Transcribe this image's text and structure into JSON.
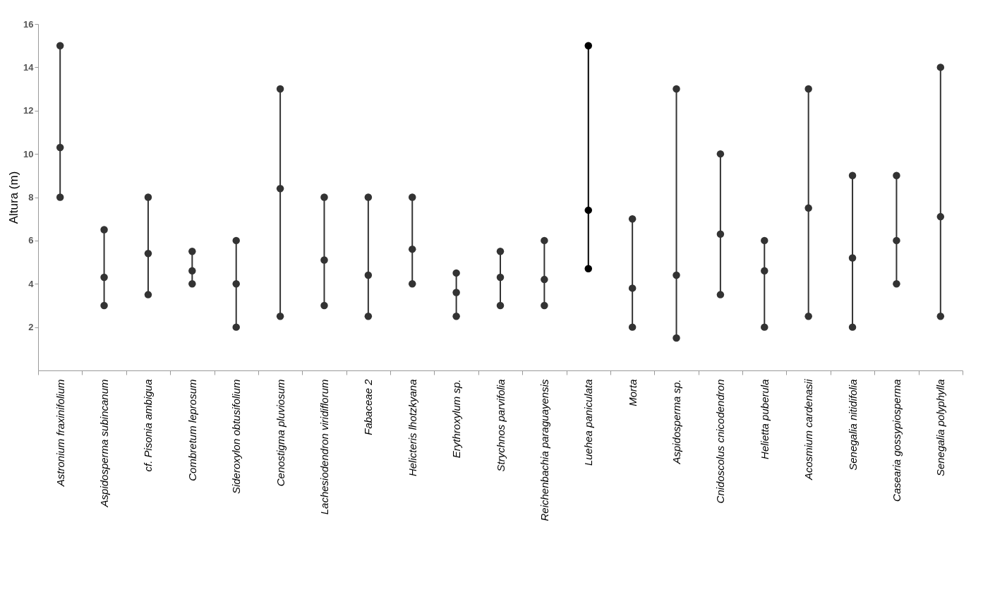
{
  "chart_data": {
    "type": "line",
    "ylabel": "Altura (m)",
    "categories": [
      "Astronium fraxinifolium",
      "Aspidosperma subincanum",
      "cf. Pisonia ambigua",
      "Combretum leprosum",
      "Sideroxylon obtusifolium",
      "Cenostigma pluviosum",
      "Lachesiodendron viridiflorum",
      "Fabaceae 2",
      "Helicteris lhotzkyana",
      "Erythroxylum sp.",
      "Strychnos parvifolia",
      "Reichenbachia paraguayensis",
      "Luehea paniculata",
      "Morta",
      "Aspidosperma sp.",
      "Cnidoscolus cnicodendron",
      "Helietta puberula",
      "Acosmium cardenasii",
      "Senegalia nitidifolia",
      "Casearia gossypiosperma",
      "Senegalia polyphylla"
    ],
    "series": [
      {
        "color": "#333333",
        "x": [
          "Astronium fraxinifolium",
          "Astronium fraxinifolium",
          "Astronium fraxinifolium"
        ],
        "values": [
          8,
          10.3,
          15
        ]
      },
      {
        "color": "#333333",
        "x": [
          "Aspidosperma subincanum",
          "Aspidosperma subincanum",
          "Aspidosperma subincanum"
        ],
        "values": [
          3,
          4.3,
          6.5
        ]
      },
      {
        "color": "#333333",
        "x": [
          "cf. Pisonia ambigua",
          "cf. Pisonia ambigua",
          "cf. Pisonia ambigua"
        ],
        "values": [
          3.5,
          5.4,
          8
        ]
      },
      {
        "color": "#333333",
        "x": [
          "Combretum leprosum",
          "Combretum leprosum",
          "Combretum leprosum"
        ],
        "values": [
          4,
          4.6,
          5.5
        ]
      },
      {
        "color": "#333333",
        "x": [
          "Sideroxylon obtusifolium",
          "Sideroxylon obtusifolium",
          "Sideroxylon obtusifolium"
        ],
        "values": [
          2,
          4,
          6
        ]
      },
      {
        "color": "#333333",
        "x": [
          "Cenostigma pluviosum",
          "Cenostigma pluviosum",
          "Cenostigma pluviosum"
        ],
        "values": [
          2.5,
          8.4,
          13
        ]
      },
      {
        "color": "#333333",
        "x": [
          "Lachesiodendron viridiflorum",
          "Lachesiodendron viridiflorum",
          "Lachesiodendron viridiflorum"
        ],
        "values": [
          3,
          5.1,
          8
        ]
      },
      {
        "color": "#333333",
        "x": [
          "Fabaceae 2",
          "Fabaceae 2",
          "Fabaceae 2"
        ],
        "values": [
          2.5,
          4.4,
          8
        ]
      },
      {
        "color": "#333333",
        "x": [
          "Helicteris lhotzkyana",
          "Helicteris lhotzkyana",
          "Helicteris lhotzkyana"
        ],
        "values": [
          4,
          5.6,
          8
        ]
      },
      {
        "color": "#333333",
        "x": [
          "Erythroxylum sp.",
          "Erythroxylum sp.",
          "Erythroxylum sp."
        ],
        "values": [
          2.5,
          3.6,
          4.5
        ]
      },
      {
        "color": "#333333",
        "x": [
          "Strychnos parvifolia",
          "Strychnos parvifolia",
          "Strychnos parvifolia"
        ],
        "values": [
          3,
          4.3,
          5.5
        ]
      },
      {
        "color": "#333333",
        "x": [
          "Reichenbachia paraguayensis",
          "Reichenbachia paraguayensis",
          "Reichenbachia paraguayensis"
        ],
        "values": [
          3,
          4.2,
          6
        ]
      },
      {
        "color": "#000000",
        "x": [
          "Luehea paniculata",
          "Luehea paniculata",
          "Luehea paniculata"
        ],
        "values": [
          4.7,
          7.4,
          15
        ]
      },
      {
        "color": "#333333",
        "x": [
          "Morta",
          "Morta",
          "Morta"
        ],
        "values": [
          2,
          3.8,
          7
        ]
      },
      {
        "color": "#333333",
        "x": [
          "Aspidosperma sp.",
          "Aspidosperma sp.",
          "Aspidosperma sp."
        ],
        "values": [
          1.5,
          4.4,
          13
        ]
      },
      {
        "color": "#333333",
        "x": [
          "Cnidoscolus cnicodendron",
          "Cnidoscolus cnicodendron",
          "Cnidoscolus cnicodendron"
        ],
        "values": [
          3.5,
          6.3,
          10
        ]
      },
      {
        "color": "#333333",
        "x": [
          "Helietta puberula",
          "Helietta puberula",
          "Helietta puberula"
        ],
        "values": [
          2,
          4.6,
          6
        ]
      },
      {
        "color": "#333333",
        "x": [
          "Acosmium cardenasii",
          "Acosmium cardenasii",
          "Acosmium cardenasii"
        ],
        "values": [
          2.5,
          7.5,
          13
        ]
      },
      {
        "color": "#333333",
        "x": [
          "Senegalia nitidifolia",
          "Senegalia nitidifolia",
          "Senegalia nitidifolia"
        ],
        "values": [
          2,
          5.2,
          9
        ]
      },
      {
        "color": "#333333",
        "x": [
          "Casearia gossypiosperma",
          "Casearia gossypiosperma",
          "Casearia gossypiosperma"
        ],
        "values": [
          4,
          6,
          9
        ]
      },
      {
        "color": "#333333",
        "x": [
          "Senegalia polyphylla",
          "Senegalia polyphylla",
          "Senegalia polyphylla"
        ],
        "values": [
          2.5,
          7.1,
          14
        ]
      }
    ],
    "ylim": [
      0,
      16
    ],
    "yticks": [
      2,
      4,
      6,
      8,
      10,
      12,
      14,
      16
    ],
    "marker": "circle",
    "line_style": "solid"
  }
}
